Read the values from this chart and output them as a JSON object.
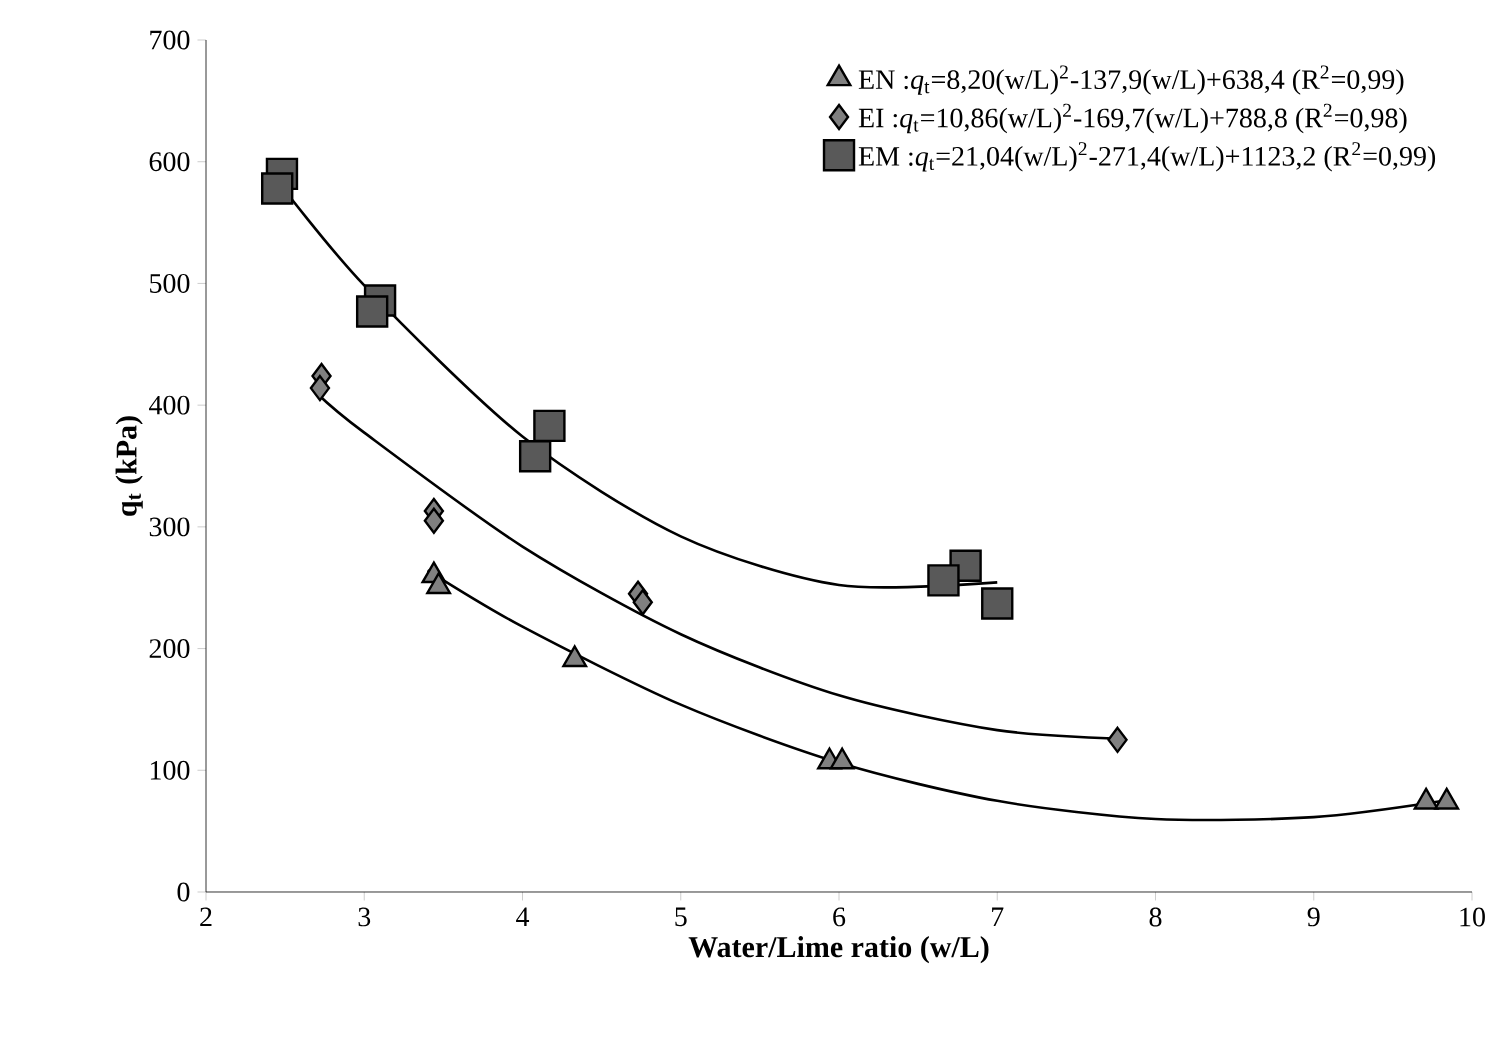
{
  "chart_data": {
    "type": "scatter",
    "xlabel": "Water/Lime ratio (w/L)",
    "ylabel": "q$_{t}$ (kPa)",
    "xlim": [
      2,
      10
    ],
    "ylim": [
      0,
      700
    ],
    "xticks": [
      2,
      3,
      4,
      5,
      6,
      7,
      8,
      9,
      10
    ],
    "yticks": [
      0,
      100,
      200,
      300,
      400,
      500,
      600,
      700
    ],
    "grid": false,
    "legend": "top right",
    "series": [
      {
        "name": "EN :*q*$_{t}$=8,20(w/L)$^{2}$-137,9(w/L)+638,4 (R$^{2}$=0,99)",
        "color": "#808080",
        "marker": "triangle",
        "x": [
          3.44,
          3.47,
          4.33,
          5.94,
          6.02,
          9.71,
          9.84
        ],
        "values": [
          260,
          251,
          191,
          107,
          107,
          74,
          74
        ]
      },
      {
        "name": "EI :*q*$_{t}$=10,86(w/L)$^{2}$-169,7(w/L)+788,8 (R$^{2}$=0,98)",
        "color": "#808080",
        "marker": "diamond",
        "x": [
          2.73,
          2.72,
          3.44,
          3.44,
          4.73,
          4.76,
          7.76
        ],
        "values": [
          424,
          414,
          313,
          305,
          245,
          238,
          125
        ]
      },
      {
        "name": "EM :*q*$_{t}$=21,04(w/L)$^{2}$-271,4(w/L)+1123,2 (R$^{2}$=0,99)",
        "color": "#595959",
        "marker": "square",
        "x": [
          2.48,
          2.45,
          3.1,
          3.05,
          4.17,
          4.08,
          6.8,
          6.66,
          7.0
        ],
        "values": [
          590,
          578,
          486,
          477,
          383,
          358,
          268,
          256,
          237
        ]
      },
      {
        "type": "line",
        "color": "#000000",
        "marker": "none",
        "x": [
          3.4,
          4,
          5,
          6,
          7,
          8,
          9,
          9.8
        ],
        "values": [
          264.3,
          218,
          153.9,
          106.2,
          74.9,
          60,
          61.5,
          74.5
        ]
      },
      {
        "type": "line",
        "color": "#000000",
        "marker": "none",
        "x": [
          2.7,
          3,
          4,
          5,
          6,
          7,
          7.8
        ],
        "values": [
          409.8,
          377.4,
          283.8,
          211.8,
          161.6,
          133,
          125.8
        ]
      },
      {
        "type": "line",
        "color": "#000000",
        "marker": "none",
        "x": [
          2.45,
          3,
          4,
          5,
          6,
          7
        ],
        "values": [
          584.6,
          498.4,
          374.2,
          292.2,
          252.2,
          254.4
        ]
      }
    ]
  }
}
